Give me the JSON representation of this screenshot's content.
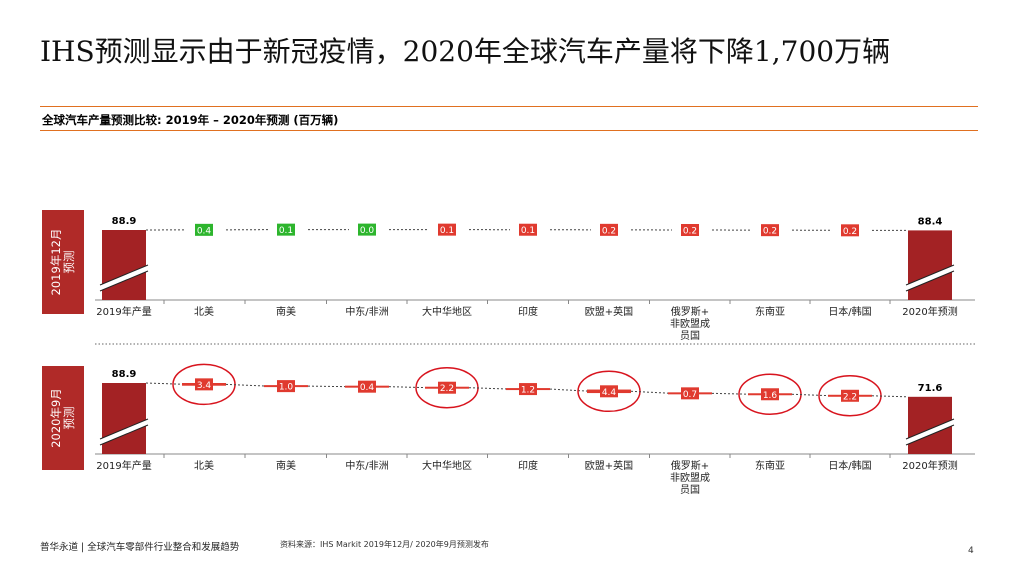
{
  "title": "IHS预测显示由于新冠疫情，2020年全球汽车产量将下降1,700万辆",
  "subtitle": "全球汽车产量预测比较: 2019年 – 2020年预测 (百万辆)",
  "colors": {
    "rule": "#e07020",
    "bar": "#a32224",
    "increase": "#2db52d",
    "decrease": "#e03a2f",
    "side_label": "#b02a28",
    "highlight_circle": "#d8141e"
  },
  "chart_data": [
    {
      "type": "bar",
      "side_label": [
        "2019年12月",
        "预测"
      ],
      "categories": [
        "2019年产量",
        "北美",
        "南美",
        "中东/非洲",
        "大中华地区",
        "印度",
        "欧盟+英国",
        "俄罗斯+\n非欧盟成\n员国",
        "东南亚",
        "日本/韩国",
        "2020年预测"
      ],
      "start_total": 88.9,
      "end_total": 88.4,
      "changes": [
        {
          "label": "0.4",
          "direction": "increase",
          "value": 0.4
        },
        {
          "label": "0.1",
          "direction": "increase",
          "value": 0.1
        },
        {
          "label": "0.0",
          "direction": "increase",
          "value": 0.0
        },
        {
          "label": "0.1",
          "direction": "decrease",
          "value": 0.1
        },
        {
          "label": "0.1",
          "direction": "decrease",
          "value": 0.1
        },
        {
          "label": "0.2",
          "direction": "decrease",
          "value": 0.2
        },
        {
          "label": "0.2",
          "direction": "decrease",
          "value": 0.2
        },
        {
          "label": "0.2",
          "direction": "decrease",
          "value": 0.2
        },
        {
          "label": "0.2",
          "direction": "decrease",
          "value": 0.2
        }
      ],
      "highlighted": []
    },
    {
      "type": "bar",
      "side_label": [
        "2020年9月",
        "预测"
      ],
      "categories": [
        "2019年产量",
        "北美",
        "南美",
        "中东/非洲",
        "大中华地区",
        "印度",
        "欧盟+英国",
        "俄罗斯+\n非欧盟成\n员国",
        "东南亚",
        "日本/韩国",
        "2020年预测"
      ],
      "start_total": 88.9,
      "end_total": 71.6,
      "changes": [
        {
          "label": "3.4",
          "direction": "decrease",
          "value": 3.4
        },
        {
          "label": "1.0",
          "direction": "decrease",
          "value": 1.0
        },
        {
          "label": "0.4",
          "direction": "decrease",
          "value": 0.4
        },
        {
          "label": "2.2",
          "direction": "decrease",
          "value": 2.2
        },
        {
          "label": "1.2",
          "direction": "decrease",
          "value": 1.2
        },
        {
          "label": "4.4",
          "direction": "decrease",
          "value": 4.4
        },
        {
          "label": "0.7",
          "direction": "decrease",
          "value": 0.7
        },
        {
          "label": "1.6",
          "direction": "decrease",
          "value": 1.6
        },
        {
          "label": "2.2",
          "direction": "decrease",
          "value": 2.2
        }
      ],
      "highlighted": [
        "北美",
        "大中华地区",
        "欧盟+英国",
        "东南亚",
        "日本/韩国"
      ]
    }
  ],
  "footer": {
    "left": "普华永道 | 全球汽车零部件行业整合和发展趋势",
    "source": "资料来源：IHS Markit 2019年12月/ 2020年9月预测发布",
    "page": "4"
  }
}
